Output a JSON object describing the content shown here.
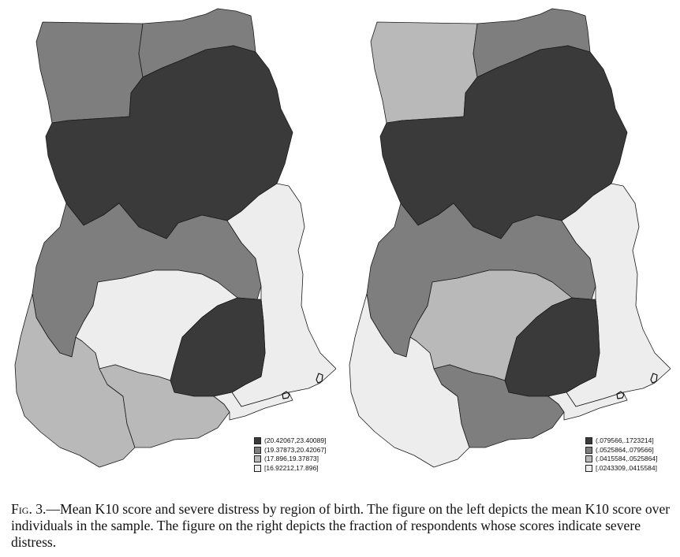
{
  "caption": {
    "label": "Fig. 3.",
    "text": "—Mean K10 score and severe distress by region of birth. The figure on the left depicts the mean K10 score over individuals in the sample. The figure on the right depicts the fraction of respondents whose scores indicate severe distress."
  },
  "maps": [
    {
      "legend": [
        {
          "label": "(20.42067,23.40089]",
          "color": "#3a3a3a"
        },
        {
          "label": "(19.37873,20.42067]",
          "color": "#7e7e7e"
        },
        {
          "label": "(17.896,19.37873]",
          "color": "#b9b9b9"
        },
        {
          "label": "[16.92212,17.896]",
          "color": "#ededed"
        }
      ],
      "regions": {
        "upper_west": "#7e7e7e",
        "upper_east": "#7e7e7e",
        "northern": "#3a3a3a",
        "brong_ahafo": "#7e7e7e",
        "volta": "#ededed",
        "ashanti": "#ededed",
        "eastern": "#3a3a3a",
        "western": "#b9b9b9",
        "central": "#b9b9b9",
        "greater_accra": "#ededed"
      }
    },
    {
      "legend": [
        {
          "label": "(.079566,.1723214]",
          "color": "#3a3a3a"
        },
        {
          "label": "(.0525864,.079566]",
          "color": "#7e7e7e"
        },
        {
          "label": "(.0415584,.0525864]",
          "color": "#b9b9b9"
        },
        {
          "label": "[.0243309,.0415584]",
          "color": "#ededed"
        }
      ],
      "regions": {
        "upper_west": "#b9b9b9",
        "upper_east": "#7e7e7e",
        "northern": "#3a3a3a",
        "brong_ahafo": "#7e7e7e",
        "volta": "#ededed",
        "ashanti": "#b9b9b9",
        "eastern": "#3a3a3a",
        "western": "#ededed",
        "central": "#7e7e7e",
        "greater_accra": "#ededed"
      }
    }
  ]
}
